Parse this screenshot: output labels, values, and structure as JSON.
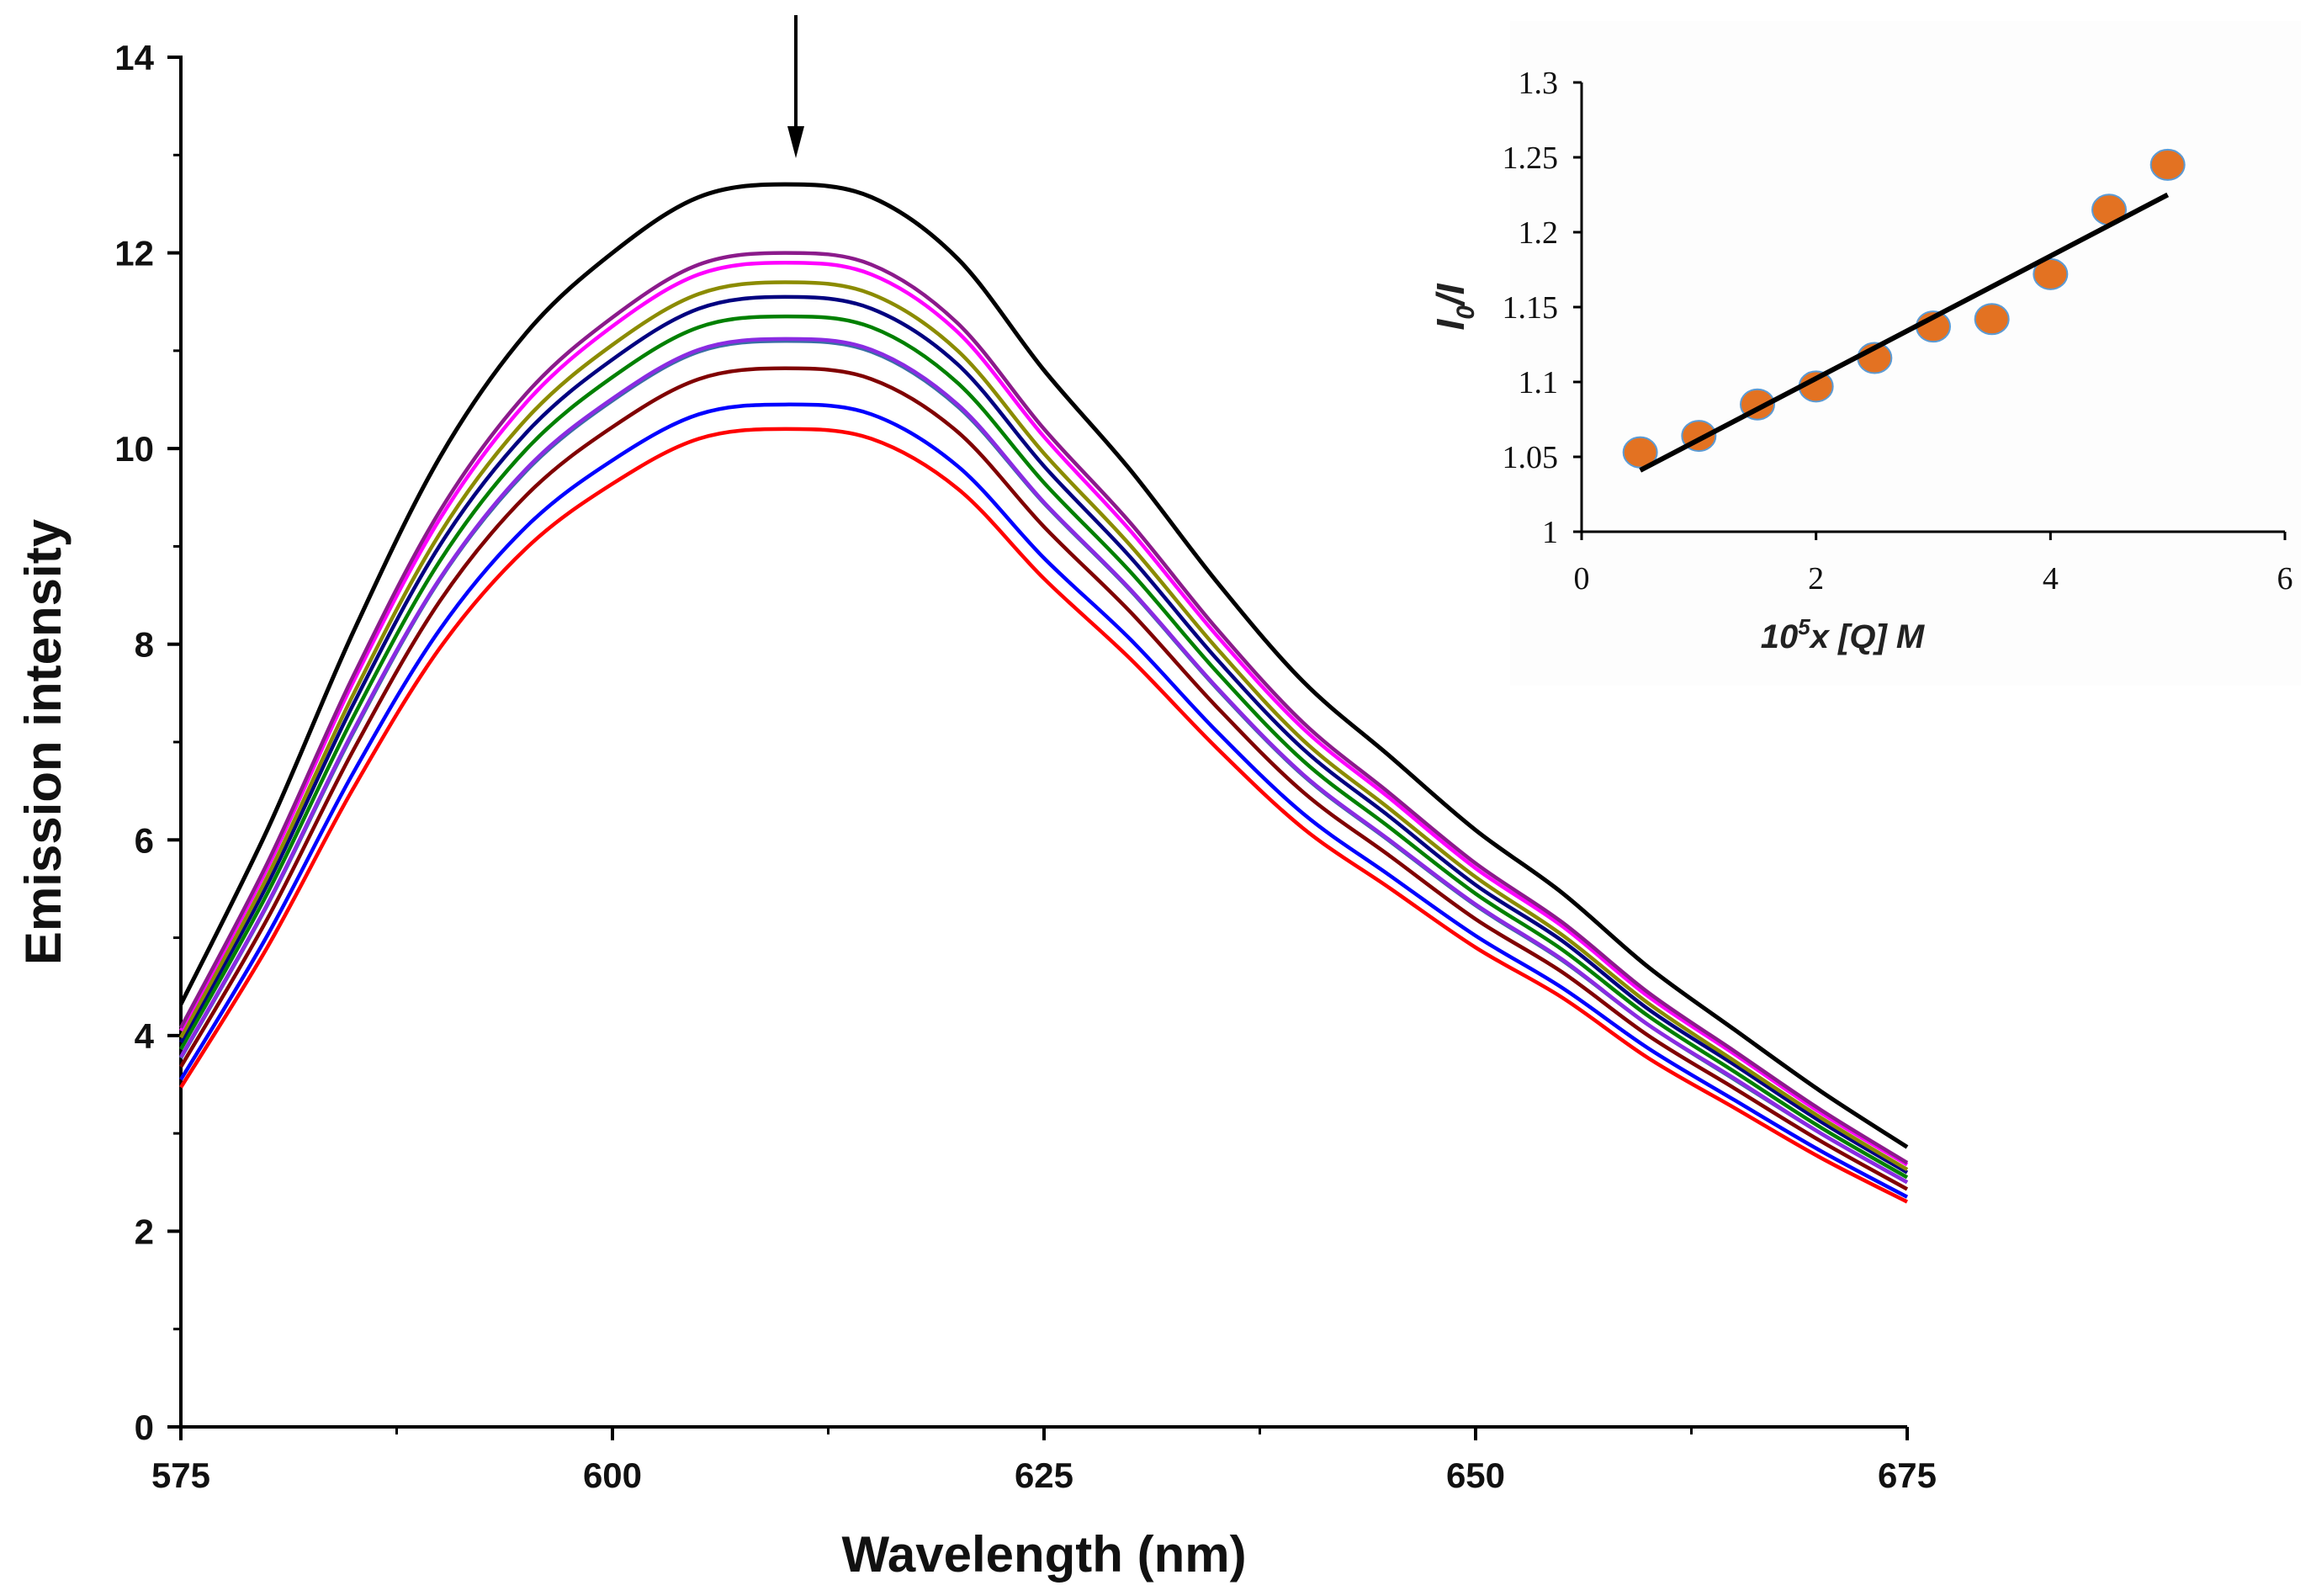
{
  "chart_data": [
    {
      "type": "line",
      "title": "",
      "xlabel": "Wavelength (nm)",
      "ylabel": "Emission intensity",
      "xlim": [
        575,
        675
      ],
      "ylim": [
        0,
        14
      ],
      "xticks": [
        "575",
        "600",
        "625",
        "650",
        "675"
      ],
      "yticks": [
        "0",
        "2",
        "4",
        "6",
        "8",
        "10",
        "12",
        "14"
      ],
      "grid": false,
      "annotation": "downward arrow at ~610 nm (decreasing intensity)",
      "x": [
        575,
        580,
        585,
        590,
        595,
        600,
        605,
        610,
        615,
        620,
        625,
        630,
        635,
        640,
        645,
        650,
        655,
        660,
        665,
        670,
        675
      ],
      "series": [
        {
          "name": "black",
          "color": "#000000",
          "values": [
            4.32,
            6.1,
            8.13,
            9.91,
            11.18,
            12.0,
            12.57,
            12.7,
            12.57,
            11.94,
            10.8,
            9.78,
            8.64,
            7.62,
            6.86,
            6.1,
            5.46,
            4.7,
            4.06,
            3.43,
            2.86
          ]
        },
        {
          "name": "purple",
          "color": "#8b1a8b",
          "values": [
            4.08,
            5.76,
            7.68,
            9.36,
            10.56,
            11.34,
            11.88,
            12.0,
            11.88,
            11.28,
            10.2,
            9.24,
            8.16,
            7.2,
            6.48,
            5.76,
            5.16,
            4.44,
            3.84,
            3.24,
            2.7
          ]
        },
        {
          "name": "magenta",
          "color": "#ff00ff",
          "values": [
            4.05,
            5.71,
            7.62,
            9.28,
            10.47,
            11.25,
            11.78,
            11.9,
            11.78,
            11.19,
            10.12,
            9.16,
            8.09,
            7.14,
            6.43,
            5.71,
            5.12,
            4.4,
            3.81,
            3.21,
            2.68
          ]
        },
        {
          "name": "olive",
          "color": "#8b8b00",
          "values": [
            3.98,
            5.62,
            7.49,
            9.13,
            10.3,
            11.06,
            11.58,
            11.7,
            11.58,
            11.0,
            9.95,
            9.01,
            7.96,
            7.02,
            6.32,
            5.62,
            5.03,
            4.33,
            3.74,
            3.16,
            2.63
          ]
        },
        {
          "name": "navy",
          "color": "#000080",
          "values": [
            3.93,
            5.54,
            7.39,
            9.01,
            10.16,
            10.91,
            11.43,
            11.55,
            11.43,
            10.86,
            9.82,
            8.89,
            7.85,
            6.93,
            6.24,
            5.54,
            4.97,
            4.27,
            3.7,
            3.12,
            2.6
          ]
        },
        {
          "name": "green",
          "color": "#008000",
          "values": [
            3.86,
            5.45,
            7.26,
            8.85,
            9.99,
            10.73,
            11.24,
            11.35,
            11.24,
            10.67,
            9.65,
            8.74,
            7.72,
            6.81,
            6.13,
            5.45,
            4.88,
            4.2,
            3.63,
            3.06,
            2.55
          ]
        },
        {
          "name": "violet",
          "color": "#8a2be2",
          "values": [
            3.78,
            5.34,
            7.12,
            8.67,
            9.79,
            10.51,
            11.01,
            11.12,
            11.01,
            10.45,
            9.45,
            8.56,
            7.56,
            6.67,
            6.0,
            5.34,
            4.78,
            4.11,
            3.56,
            3.0,
            2.5
          ]
        },
        {
          "name": "steelblue",
          "color": "#3a6ea5",
          "values": [
            3.77,
            5.33,
            7.1,
            8.66,
            9.77,
            10.49,
            10.99,
            11.1,
            10.99,
            10.43,
            9.44,
            8.55,
            7.55,
            6.66,
            5.99,
            5.33,
            4.77,
            4.11,
            3.55,
            3.0,
            2.5
          ]
        },
        {
          "name": "maroon",
          "color": "#800000",
          "values": [
            3.68,
            5.19,
            6.92,
            8.44,
            9.52,
            10.22,
            10.71,
            10.82,
            10.71,
            10.17,
            9.2,
            8.33,
            7.36,
            6.49,
            5.84,
            5.19,
            4.65,
            4.0,
            3.46,
            2.92,
            2.43
          ]
        },
        {
          "name": "blue",
          "color": "#0000ff",
          "values": [
            3.55,
            5.02,
            6.69,
            8.15,
            9.2,
            9.88,
            10.35,
            10.45,
            10.35,
            9.82,
            8.88,
            8.05,
            7.11,
            6.27,
            5.64,
            5.02,
            4.49,
            3.87,
            3.34,
            2.82,
            2.35
          ]
        },
        {
          "name": "red",
          "color": "#ff0000",
          "values": [
            3.47,
            4.9,
            6.53,
            7.96,
            8.98,
            9.64,
            10.1,
            10.2,
            10.1,
            9.59,
            8.67,
            7.85,
            6.94,
            6.12,
            5.51,
            4.9,
            4.39,
            3.77,
            3.26,
            2.75,
            2.3
          ]
        }
      ]
    },
    {
      "type": "scatter",
      "title": "",
      "xlabel_base": "10",
      "xlabel_sup": "5",
      "xlabel_rest": "x [Q] M",
      "ylabel_main": "I",
      "ylabel_sub": "0",
      "ylabel_rest": "/I",
      "xlim": [
        0,
        6
      ],
      "ylim": [
        1,
        1.3
      ],
      "xticks": [
        "0",
        "2",
        "4",
        "6"
      ],
      "yticks": [
        "1",
        "1.05",
        "1.1",
        "1.15",
        "1.2",
        "1.25",
        "1.3"
      ],
      "legend": "none",
      "points": {
        "x": [
          0.5,
          1.0,
          1.5,
          2.0,
          2.5,
          3.0,
          3.5,
          4.0,
          4.5,
          5.0
        ],
        "y": [
          1.053,
          1.064,
          1.085,
          1.097,
          1.116,
          1.137,
          1.142,
          1.172,
          1.215,
          1.245
        ],
        "color": "#e37222",
        "edge_color": "#5b9bd5"
      },
      "fit_line": {
        "x": [
          0.5,
          5.0
        ],
        "y": [
          1.041,
          1.225
        ],
        "color": "#000000"
      }
    }
  ]
}
